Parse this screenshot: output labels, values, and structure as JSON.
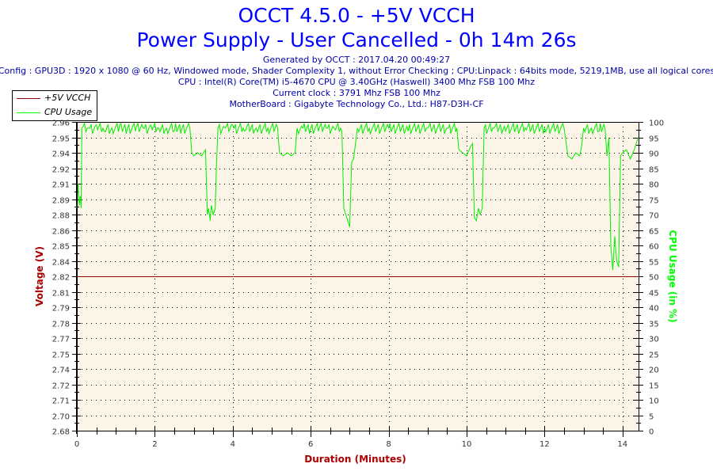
{
  "header": {
    "title_line1": "OCCT 4.5.0 - +5V VCCH",
    "title_line2": "Power Supply - User Cancelled - 0h 14m 26s",
    "generated": "Generated by OCCT : 2017.04.20 00:49:27",
    "config": "Config : GPU3D : 1920 x 1080 @ 60 Hz, Windowed mode, Shader Complexity 1, without Error Checking ; CPU:Linpack : 64bits mode, 5219,1MB, use all logical cores",
    "cpu": "CPU : Intel(R) Core(TM) i5-4670 CPU @ 3.40GHz (Haswell) 3400 Mhz FSB 100 Mhz",
    "clock": "Current clock : 3791 Mhz FSB 100 Mhz",
    "motherboard": "MotherBoard : Gigabyte Technology Co., Ltd.: H87-D3H-CF"
  },
  "legend": {
    "items": [
      {
        "label": "+5V VCCH",
        "color": "#8b0000"
      },
      {
        "label": "CPU Usage",
        "color": "#00ff00"
      }
    ]
  },
  "colors": {
    "title": "#0000ff",
    "info": "#0000aa",
    "plot_bg": "#fdf6e8",
    "voltage": "#8b0000",
    "cpu": "#00ee00",
    "left_axis_label": "#aa0000",
    "right_axis_label": "#00ff00",
    "x_axis_label": "#aa0000"
  },
  "chart_data": {
    "type": "line",
    "title": "OCCT 4.5.0 - +5V VCCH",
    "subtitle": "Power Supply - User Cancelled - 0h 14m 26s",
    "xlabel": "Duration (Minutes)",
    "ylabel": "Voltage (V)",
    "y2label": "CPU Usage (in %)",
    "xlim": [
      0,
      14.43
    ],
    "ylim": [
      2.68,
      2.96
    ],
    "y2lim": [
      0,
      100
    ],
    "x_ticks": [
      "0",
      "2",
      "4",
      "6",
      "8",
      "10",
      "12",
      "14"
    ],
    "y_ticks": [
      "2.96",
      "2.95",
      "2.94",
      "2.92",
      "2.91",
      "2.89",
      "2.88",
      "2.86",
      "2.85",
      "2.84",
      "2.82",
      "2.81",
      "2.79",
      "2.78",
      "2.77",
      "2.75",
      "2.74",
      "2.72",
      "2.71",
      "2.70",
      "2.68"
    ],
    "y2_ticks": [
      "100",
      "95",
      "90",
      "85",
      "80",
      "75",
      "70",
      "65",
      "60",
      "55",
      "50",
      "45",
      "40",
      "35",
      "30",
      "25",
      "20",
      "15",
      "10",
      "5",
      "0"
    ],
    "grid": true,
    "legend_position": "top-left",
    "series": [
      {
        "name": "+5V VCCH",
        "axis": "left",
        "x": [
          0,
          14.43
        ],
        "values": [
          2.82,
          2.82
        ]
      },
      {
        "name": "CPU Usage",
        "axis": "right",
        "x": [
          0,
          0.03,
          0.06,
          0.09,
          0.11,
          0.13,
          0.3,
          0.5,
          0.7,
          0.9,
          1.1,
          1.3,
          1.5,
          1.7,
          1.9,
          2.1,
          2.3,
          2.5,
          2.7,
          2.9,
          2.95,
          3.0,
          3.1,
          3.2,
          3.3,
          3.35,
          3.38,
          3.42,
          3.45,
          3.5,
          3.55,
          3.58,
          3.62,
          3.8,
          4.0,
          4.3,
          4.6,
          4.9,
          5.15,
          5.2,
          5.3,
          5.4,
          5.5,
          5.6,
          5.65,
          5.8,
          6.0,
          6.2,
          6.4,
          6.6,
          6.8,
          6.85,
          6.9,
          6.95,
          7.0,
          7.05,
          7.1,
          7.2,
          7.5,
          8.0,
          8.5,
          9.0,
          9.5,
          9.75,
          9.8,
          9.9,
          10.0,
          10.1,
          10.15,
          10.2,
          10.25,
          10.3,
          10.35,
          10.4,
          10.45,
          10.7,
          11.0,
          11.5,
          12.0,
          12.5,
          12.6,
          12.7,
          12.8,
          12.9,
          12.95,
          13.0,
          13.2,
          13.4,
          13.55,
          13.6,
          13.65,
          13.7,
          13.75,
          13.8,
          13.85,
          13.9,
          13.95,
          14.0,
          14.1,
          14.2,
          14.3,
          14.4
        ],
        "values": [
          72,
          80,
          73,
          76,
          72,
          98,
          98,
          99,
          97,
          98,
          99,
          98,
          97,
          98,
          99,
          98,
          98,
          97,
          98,
          98,
          90,
          89,
          90,
          89,
          91,
          70,
          72,
          68,
          73,
          70,
          72,
          85,
          98,
          98,
          99,
          97,
          98,
          98,
          98,
          90,
          89,
          90,
          89,
          90,
          98,
          98,
          98,
          97,
          98,
          98,
          97,
          72,
          70,
          68,
          66,
          87,
          88,
          98,
          98,
          98,
          97,
          98,
          98,
          98,
          91,
          90,
          89,
          92,
          93,
          69,
          68,
          72,
          70,
          72,
          98,
          98,
          97,
          98,
          98,
          98,
          89,
          88,
          90,
          89,
          92,
          98,
          98,
          97,
          98,
          89,
          95,
          60,
          52,
          63,
          55,
          53,
          89,
          90,
          91,
          88,
          91,
          95
        ]
      }
    ]
  }
}
